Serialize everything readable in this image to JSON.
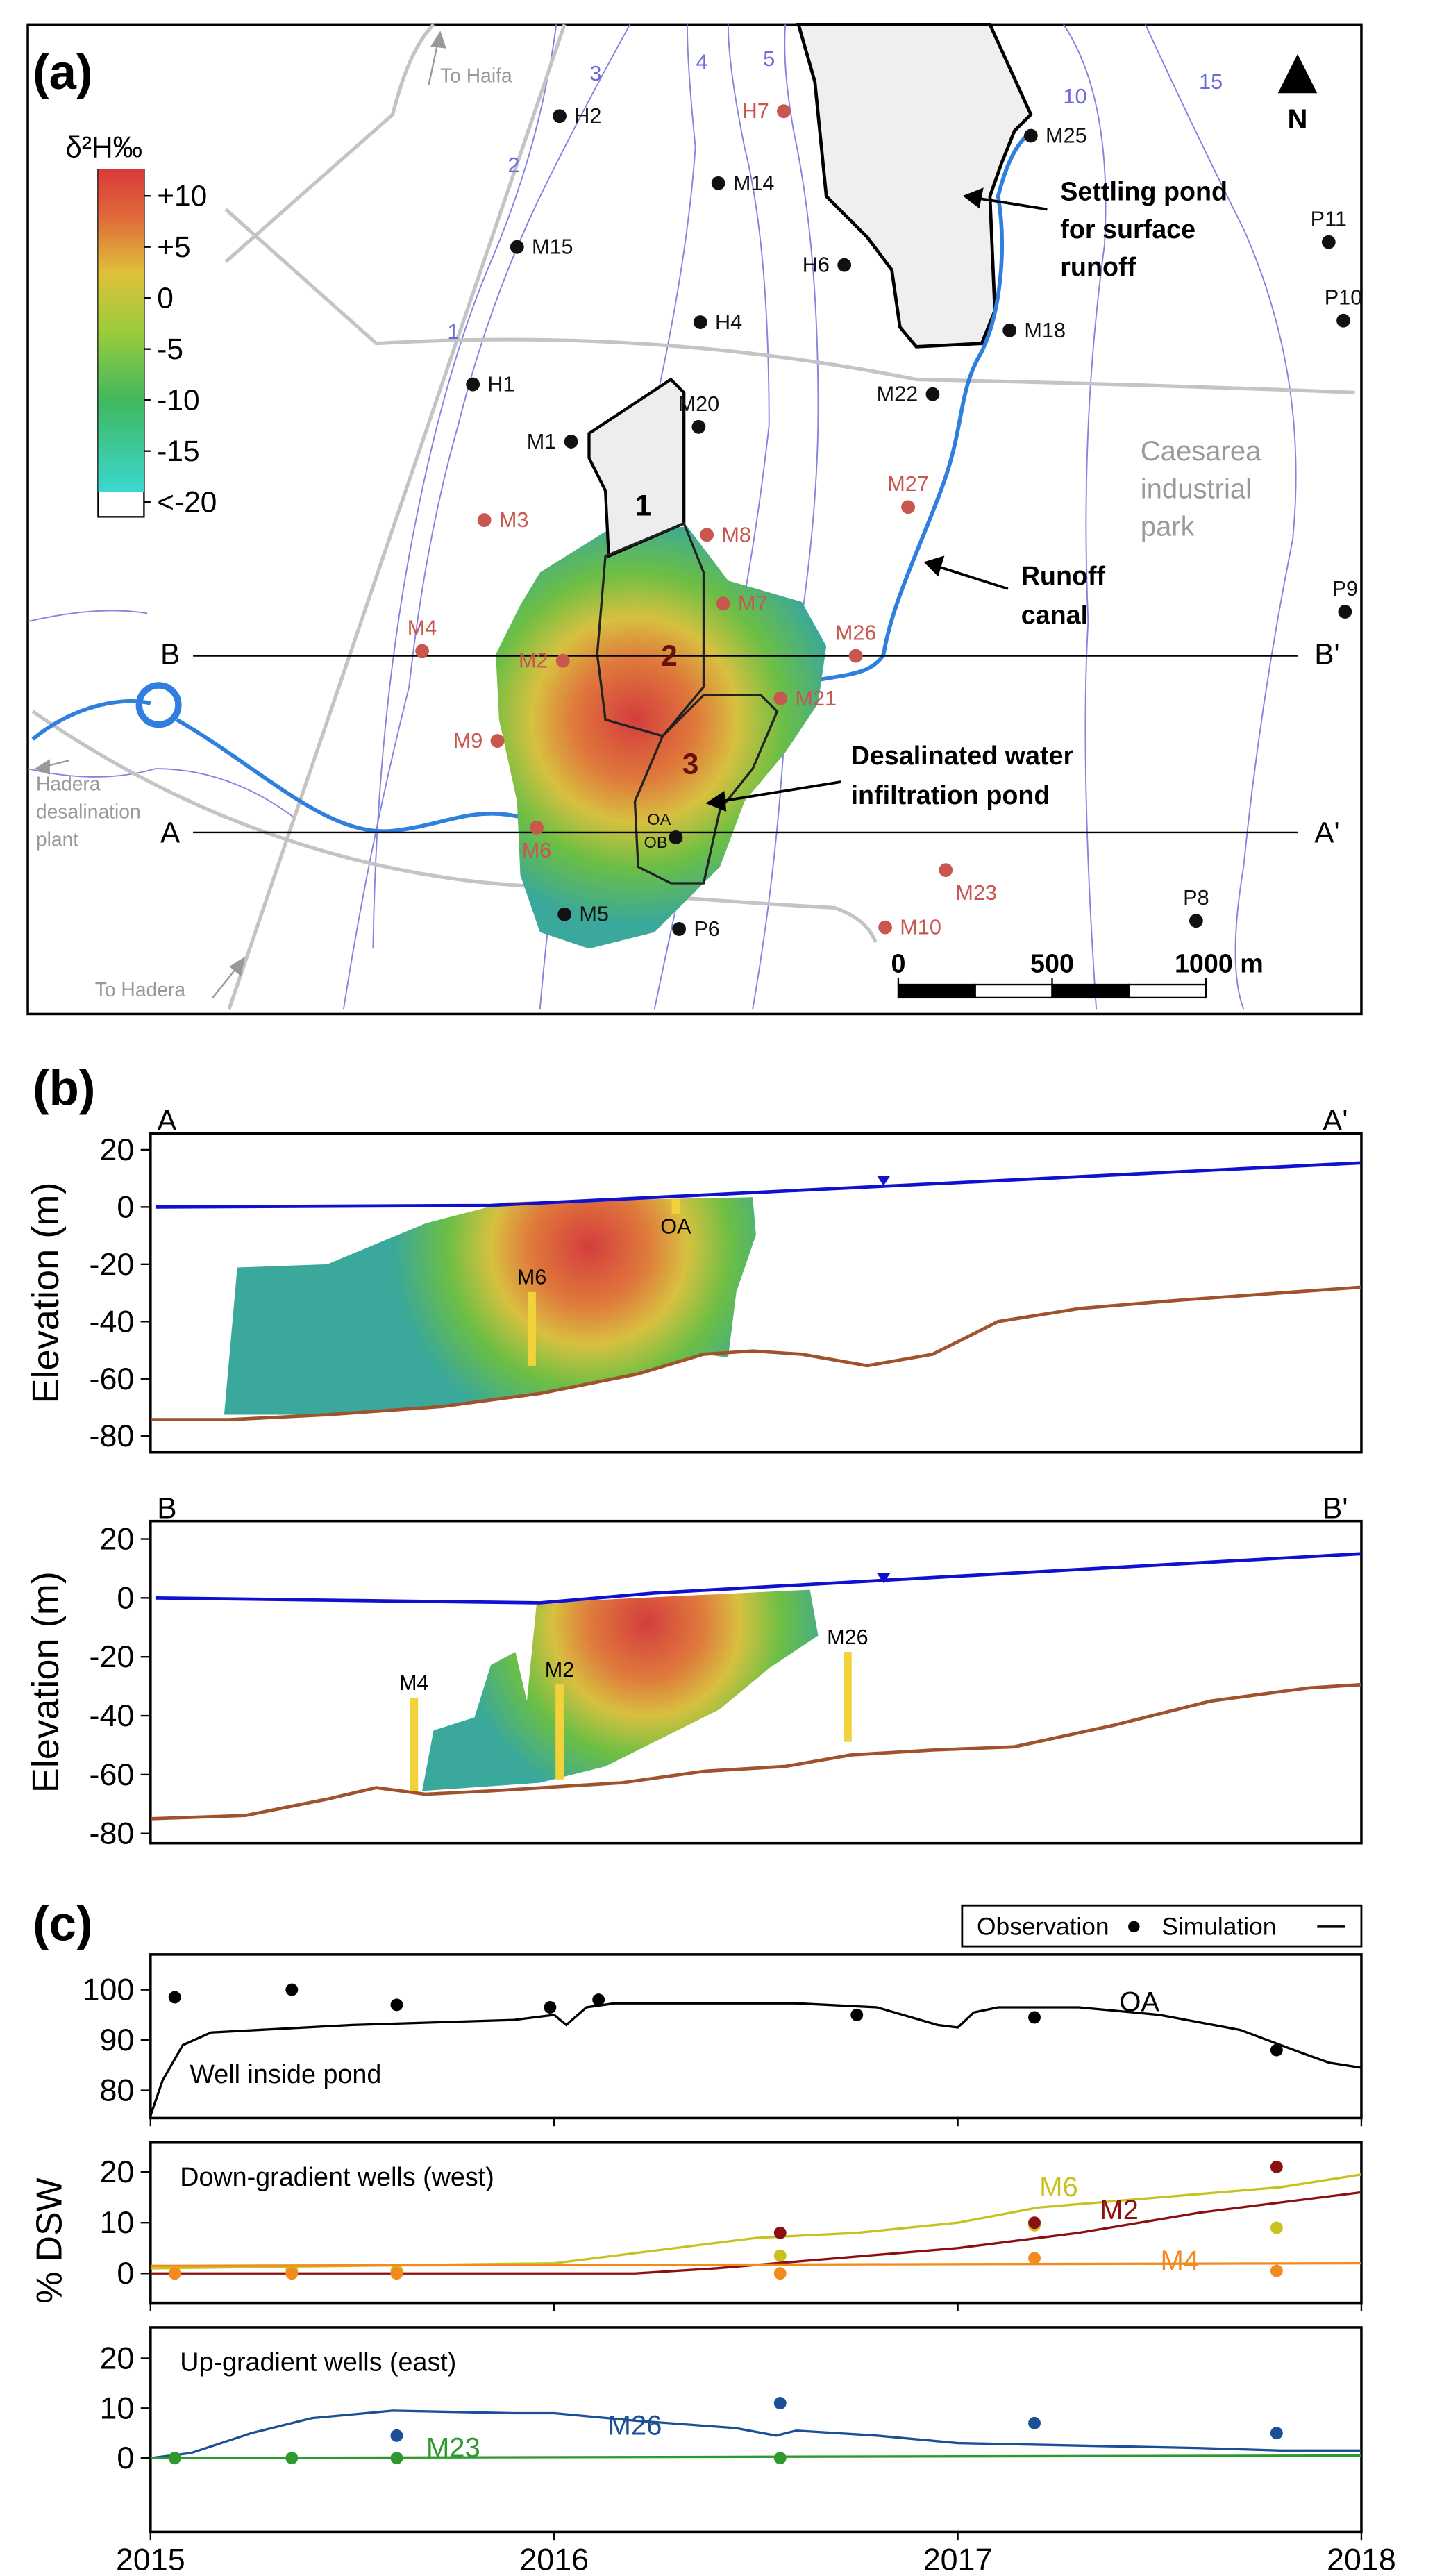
{
  "panel_labels": [
    "(a)",
    "(b)",
    "(c)"
  ],
  "map": {
    "north": "N",
    "legend": {
      "title": "δ²H‰",
      "clim": [
        -19,
        12.6
      ],
      "ticks": [
        {
          "value": 10,
          "label": "+10"
        },
        {
          "value": 5,
          "label": "+5"
        },
        0,
        -5,
        -10,
        -15,
        {
          "value": -20,
          "label": "<-20"
        }
      ]
    },
    "wells": [
      {
        "name": "H2",
        "color": "#111111"
      },
      {
        "name": "H7",
        "color": "#c9564f"
      },
      {
        "name": "M25",
        "color": "#111111"
      },
      {
        "name": "M14",
        "color": "#111111"
      },
      {
        "name": "M15",
        "color": "#111111"
      },
      {
        "name": "H6",
        "color": "#111111"
      },
      {
        "name": "P11",
        "color": "#111111"
      },
      {
        "name": "P10",
        "color": "#111111"
      },
      {
        "name": "M18",
        "color": "#111111"
      },
      {
        "name": "H4",
        "color": "#111111"
      },
      {
        "name": "H1",
        "color": "#111111"
      },
      {
        "name": "M20",
        "color": "#111111"
      },
      {
        "name": "M22",
        "color": "#111111"
      },
      {
        "name": "M1",
        "color": "#111111"
      },
      {
        "name": "M27",
        "color": "#c9564f"
      },
      {
        "name": "M3",
        "color": "#c9564f"
      },
      {
        "name": "M8",
        "color": "#c9564f"
      },
      {
        "name": "M7",
        "color": "#c9564f"
      },
      {
        "name": "M4",
        "color": "#c9564f"
      },
      {
        "name": "M2",
        "color": "#c9564f"
      },
      {
        "name": "M26",
        "color": "#c9564f"
      },
      {
        "name": "P9",
        "color": "#111111"
      },
      {
        "name": "M21",
        "color": "#c9564f"
      },
      {
        "name": "M9",
        "color": "#c9564f"
      },
      {
        "name": "OA",
        "color": "#111111"
      },
      {
        "name": "OB",
        "color": "#111111"
      },
      {
        "name": "M6",
        "color": "#c9564f"
      },
      {
        "name": "M23",
        "color": "#c9564f"
      },
      {
        "name": "M5",
        "color": "#111111"
      },
      {
        "name": "P6",
        "color": "#111111"
      },
      {
        "name": "M10",
        "color": "#c9564f"
      },
      {
        "name": "P8",
        "color": "#111111"
      }
    ],
    "contour_labels": [
      1,
      2,
      3,
      4,
      5,
      10,
      15
    ],
    "pond_labels": [
      1,
      2,
      3
    ],
    "section_labels": [
      "A",
      "A'",
      "B",
      "B'"
    ],
    "places": {
      "to_haifa": "To Haifa",
      "to_hadera": "To Hadera",
      "desalination_plant": [
        "Hadera",
        "desalination",
        "plant"
      ],
      "industrial_park": [
        "Caesarea",
        "industrial",
        "park"
      ],
      "settling_pond": [
        "Settling pond",
        "for surface",
        "runoff"
      ],
      "runoff_canal": [
        "Runoff",
        "canal"
      ],
      "infiltration_pond": [
        "Desalinated water",
        "infiltration pond"
      ]
    },
    "scale_bar": [
      0,
      500,
      {
        "value": 1000,
        "label": "1000 m"
      }
    ]
  },
  "sections": [
    {
      "start": "A",
      "end": "A'",
      "y_label": "Elevation (m)",
      "ylim": [
        -85.7,
        25.7
      ],
      "yticks": [
        20,
        0,
        -20,
        -40,
        -60,
        -80
      ],
      "wells": [
        "OA",
        "M6"
      ]
    },
    {
      "start": "B",
      "end": "B'",
      "y_label": "Elevation (m)",
      "ylim": [
        -83.3,
        26.1
      ],
      "yticks": [
        20,
        0,
        -20,
        -40,
        -60,
        -80
      ],
      "wells": [
        "M4",
        "M2",
        "M26"
      ]
    }
  ],
  "legend": [
    "Observation",
    "Simulation"
  ],
  "y_label": "% DSW",
  "chart_data": [
    {
      "type": "line",
      "title": "Well inside pond",
      "xlim": [
        2015,
        2018
      ],
      "ylim": [
        74.5,
        107
      ],
      "yticks": [
        80,
        90,
        100
      ],
      "series": [
        {
          "name": "OA",
          "color": "#000000",
          "observations": {
            "x": [
              2015.06,
              2015.35,
              2015.61,
              2015.99,
              2016.11,
              2016.75,
              2017.19,
              2017.79
            ],
            "values": [
              98.5,
              100,
              97,
              96.5,
              98,
              95,
              94.5,
              88
            ]
          },
          "simulation": {
            "x": [
              2015.0,
              2015.03,
              2015.08,
              2015.15,
              2015.5,
              2015.9,
              2016.0,
              2016.03,
              2016.08,
              2016.15,
              2016.6,
              2016.8,
              2016.95,
              2017.0,
              2017.04,
              2017.1,
              2017.3,
              2017.5,
              2017.7,
              2017.85,
              2017.92,
              2018.0
            ],
            "values": [
              75,
              82,
              89,
              91.5,
              93,
              94,
              95,
              93,
              96.5,
              97.3,
              97.3,
              96.5,
              93,
              92.5,
              95.5,
              96.5,
              96.5,
              95,
              92,
              87.5,
              85.5,
              84.5
            ]
          }
        }
      ]
    },
    {
      "type": "line",
      "title": "Down-gradient wells (west)",
      "xlim": [
        2015,
        2018
      ],
      "ylim": [
        -5.8,
        25.8
      ],
      "yticks": [
        0,
        10,
        20
      ],
      "series": [
        {
          "name": "M6",
          "color": "#c8c21e",
          "observations": {
            "x": [
              2015.06,
              2015.35,
              2015.61,
              2016.56,
              2017.19,
              2017.79
            ],
            "values": [
              0,
              0.5,
              0.5,
              3.5,
              9.5,
              9
            ]
          },
          "simulation": {
            "x": [
              2015,
              2015.5,
              2016,
              2016.2,
              2016.5,
              2016.75,
              2017,
              2017.2,
              2017.5,
              2017.8,
              2018
            ],
            "values": [
              1,
              1.5,
              2,
              4,
              7,
              8,
              10,
              13,
              15,
              17,
              19.5
            ]
          }
        },
        {
          "name": "M2",
          "color": "#8b1010",
          "observations": {
            "x": [
              2016.56,
              2017.19,
              2017.79
            ],
            "values": [
              8,
              10,
              21
            ]
          },
          "simulation": {
            "x": [
              2015,
              2016.2,
              2016.4,
              2016.7,
              2017,
              2017.3,
              2017.6,
              2017.8,
              2018
            ],
            "values": [
              0,
              0,
              1,
              3,
              5,
              8,
              12,
              14,
              16
            ]
          }
        },
        {
          "name": "M4",
          "color": "#f28a1e",
          "observations": {
            "x": [
              2015.06,
              2015.35,
              2015.61,
              2016.56,
              2017.19,
              2017.79
            ],
            "values": [
              0,
              0,
              0,
              0,
              3,
              0.5
            ]
          },
          "simulation": {
            "x": [
              2015,
              2018
            ],
            "values": [
              1.5,
              2
            ]
          }
        }
      ]
    },
    {
      "type": "line",
      "title": "Up-gradient wells (east)",
      "xlim": [
        2015,
        2018
      ],
      "ylim": [
        -14.8,
        26.2
      ],
      "yticks": [
        0,
        10,
        20
      ],
      "xticks": [
        2015,
        2016,
        2017,
        2018
      ],
      "series": [
        {
          "name": "M26",
          "color": "#1b4f96",
          "observations": {
            "x": [
              2015.06,
              2015.61,
              2016.56,
              2017.19,
              2017.79
            ],
            "values": [
              0,
              4.5,
              11,
              7,
              5
            ]
          },
          "simulation": {
            "x": [
              2015,
              2015.1,
              2015.25,
              2015.4,
              2015.6,
              2015.9,
              2016,
              2016.2,
              2016.45,
              2016.55,
              2016.6,
              2016.8,
              2017,
              2017.3,
              2017.6,
              2017.8,
              2018
            ],
            "values": [
              0,
              1,
              5,
              8,
              9.5,
              9,
              9,
              7.5,
              6,
              4.5,
              5.5,
              4.5,
              3,
              2.5,
              2,
              1.5,
              1.5
            ]
          }
        },
        {
          "name": "M23",
          "color": "#2e9a2e",
          "observations": {
            "x": [
              2015.06,
              2015.35,
              2015.61,
              2016.56
            ],
            "values": [
              0,
              0,
              0,
              0
            ]
          },
          "simulation": {
            "x": [
              2015,
              2018
            ],
            "values": [
              0,
              0.5
            ]
          }
        }
      ]
    }
  ]
}
